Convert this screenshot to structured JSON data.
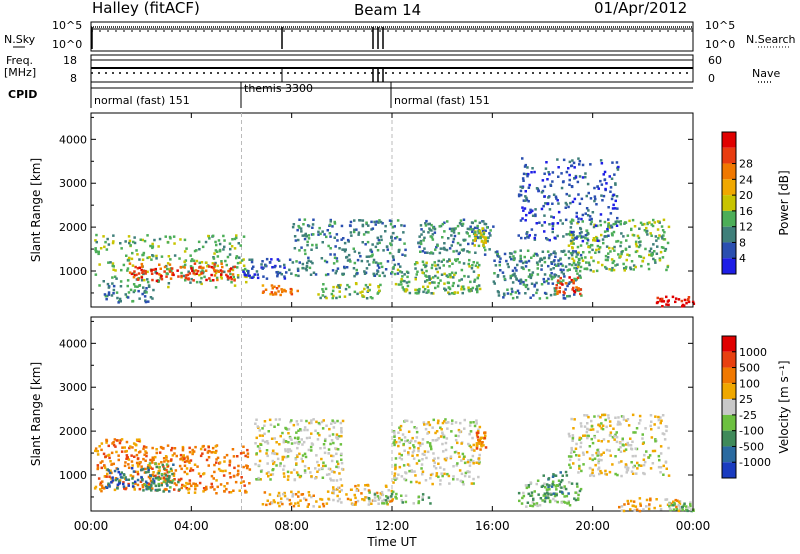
{
  "header": {
    "title": "Halley (fitACF)",
    "beam": "Beam 14",
    "date": "01/Apr/2012"
  },
  "summary_panels": {
    "nsky_label": "N.Sky",
    "nsearch_label": "N.Search",
    "noise_ticks_left": [
      "10^5",
      "10^0"
    ],
    "noise_ticks_right": [
      "10^5",
      "10^0"
    ],
    "freq_label": "Freq.",
    "freq_unit": "[MHz]",
    "freq_ticks": [
      "18",
      "8"
    ],
    "nave_label": "Nave",
    "nave_ticks": [
      "60",
      "0"
    ],
    "cpid_label": "CPID",
    "cpid_segments": [
      {
        "label": "normal (fast) 151",
        "start_h": 0,
        "end_h": 6
      },
      {
        "label": "themis 3300",
        "start_h": 6,
        "end_h": 12
      },
      {
        "label": "normal (fast) 151",
        "start_h": 12,
        "end_h": 24
      }
    ]
  },
  "x_axis": {
    "label": "Time UT",
    "ticks": [
      "00:00",
      "04:00",
      "08:00",
      "12:00",
      "16:00",
      "20:00",
      "00:00"
    ],
    "tick_hours": [
      0,
      4,
      8,
      12,
      16,
      20,
      24
    ]
  },
  "chart_data": [
    {
      "type": "heatmap",
      "ylabel": "Slant Range [km]",
      "yticks": [
        "1000",
        "2000",
        "3000",
        "4000"
      ],
      "ytick_values": [
        1000,
        2000,
        3000,
        4000
      ],
      "xlim_hours": [
        0,
        24
      ],
      "ylim_km": [
        180,
        4600
      ],
      "colorbar": {
        "label": "Power [dB]",
        "ticks": [
          "4",
          "8",
          "12",
          "16",
          "20",
          "24",
          "28"
        ],
        "colors": [
          "#1e1ee6",
          "#2a4fb0",
          "#3f7f7a",
          "#4cae58",
          "#c8c400",
          "#f0a800",
          "#f07800",
          "#e83c10",
          "#e00000"
        ]
      },
      "features": [
        {
          "t0": 0.1,
          "t1": 6.2,
          "r0": 650,
          "r1": 1850,
          "level": 3
        },
        {
          "t0": 1.5,
          "t1": 5.8,
          "r0": 800,
          "r1": 1200,
          "level": 7
        },
        {
          "t0": 0.5,
          "t1": 2.5,
          "r0": 300,
          "r1": 700,
          "level": 2
        },
        {
          "t0": 6.0,
          "t1": 8.0,
          "r0": 850,
          "r1": 1300,
          "level": 1
        },
        {
          "t0": 6.8,
          "t1": 8.2,
          "r0": 480,
          "r1": 700,
          "level": 6
        },
        {
          "t0": 8.0,
          "t1": 12.5,
          "r0": 900,
          "r1": 2200,
          "level": 2
        },
        {
          "t0": 9.0,
          "t1": 11.5,
          "r0": 400,
          "r1": 750,
          "level": 3
        },
        {
          "t0": 12.0,
          "t1": 15.5,
          "r0": 500,
          "r1": 1300,
          "level": 3
        },
        {
          "t0": 13.0,
          "t1": 16.0,
          "r0": 1400,
          "r1": 2200,
          "level": 2
        },
        {
          "t0": 15.2,
          "t1": 15.7,
          "r0": 1600,
          "r1": 2000,
          "level": 4
        },
        {
          "t0": 16.0,
          "t1": 19.5,
          "r0": 400,
          "r1": 1500,
          "level": 2
        },
        {
          "t0": 18.5,
          "t1": 19.5,
          "r0": 500,
          "r1": 900,
          "level": 7
        },
        {
          "t0": 19.0,
          "t1": 23.0,
          "r0": 1000,
          "r1": 2200,
          "level": 3
        },
        {
          "t0": 22.5,
          "t1": 24.0,
          "r0": 200,
          "r1": 450,
          "level": 8
        },
        {
          "t0": 17.0,
          "t1": 21.0,
          "r0": 1700,
          "r1": 3600,
          "level": 1
        }
      ]
    },
    {
      "type": "heatmap",
      "ylabel": "Slant Range [km]",
      "yticks": [
        "1000",
        "2000",
        "3000",
        "4000"
      ],
      "ytick_values": [
        1000,
        2000,
        3000,
        4000
      ],
      "xlim_hours": [
        0,
        24
      ],
      "ylim_km": [
        180,
        4600
      ],
      "colorbar": {
        "label": "Velocity [m s⁻¹]",
        "ticks": [
          "1000",
          "500",
          "100",
          "25",
          "-25",
          "-100",
          "-500",
          "-1000"
        ],
        "colors": [
          "#1a3cc0",
          "#2a6aa0",
          "#3f8a5a",
          "#6cc040",
          "#c8c8c8",
          "#f0a800",
          "#f07800",
          "#e84010",
          "#e00000"
        ]
      },
      "features": [
        {
          "t0": 0.1,
          "t1": 2.0,
          "r0": 650,
          "r1": 1850,
          "level": 6
        },
        {
          "t0": 0.5,
          "t1": 2.5,
          "r0": 700,
          "r1": 1200,
          "level": 1
        },
        {
          "t0": 2.0,
          "t1": 6.3,
          "r0": 600,
          "r1": 1700,
          "level": 6
        },
        {
          "t0": 2.0,
          "t1": 3.5,
          "r0": 650,
          "r1": 1300,
          "level": 2
        },
        {
          "t0": 6.8,
          "t1": 9.5,
          "r0": 300,
          "r1": 650,
          "level": 5
        },
        {
          "t0": 6.5,
          "t1": 10.0,
          "r0": 900,
          "r1": 2300,
          "level": 4
        },
        {
          "t0": 9.5,
          "t1": 12.0,
          "r0": 350,
          "r1": 800,
          "level": 5
        },
        {
          "t0": 11.0,
          "t1": 13.5,
          "r0": 350,
          "r1": 650,
          "level": 3
        },
        {
          "t0": 12.0,
          "t1": 15.5,
          "r0": 800,
          "r1": 2300,
          "level": 4
        },
        {
          "t0": 15.3,
          "t1": 15.7,
          "r0": 1600,
          "r1": 2000,
          "level": 6
        },
        {
          "t0": 17.0,
          "t1": 19.5,
          "r0": 300,
          "r1": 900,
          "level": 3
        },
        {
          "t0": 18.0,
          "t1": 19.0,
          "r0": 500,
          "r1": 1100,
          "level": 2
        },
        {
          "t0": 19.0,
          "t1": 23.0,
          "r0": 1000,
          "r1": 2400,
          "level": 4
        },
        {
          "t0": 21.0,
          "t1": 23.5,
          "r0": 200,
          "r1": 500,
          "level": 5
        },
        {
          "t0": 23.0,
          "t1": 24.0,
          "r0": 200,
          "r1": 400,
          "level": 3
        }
      ]
    }
  ]
}
